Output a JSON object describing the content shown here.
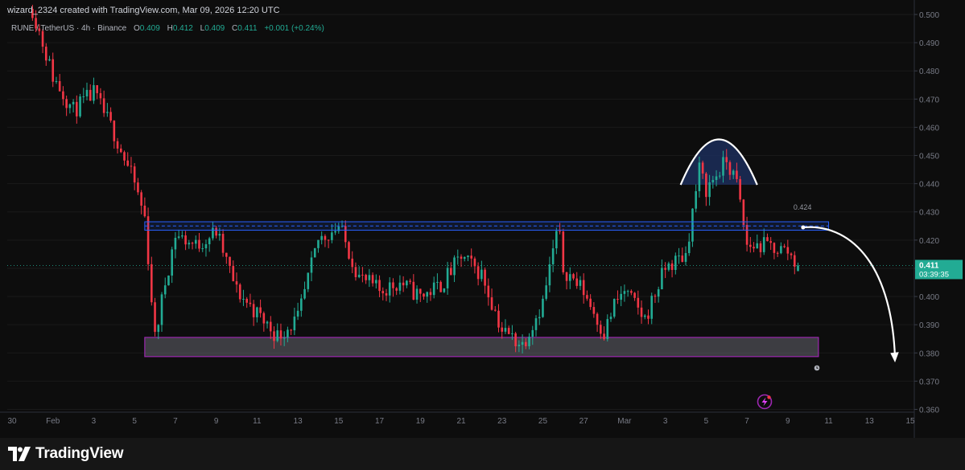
{
  "header": {
    "attribution": "wizard_2324 created with TradingView.com, Mar 09, 2026 12:20 UTC"
  },
  "legend": {
    "symbol": "RUNE / TetherUS · 4h · Binance",
    "open_label": "O",
    "open": "0.409",
    "high_label": "H",
    "high": "0.412",
    "low_label": "L",
    "low": "0.409",
    "close_label": "C",
    "close": "0.411",
    "change": "+0.001 (+0.24%)"
  },
  "last_price": {
    "value": "0.411",
    "countdown": "03:39:35"
  },
  "footer": {
    "brand": "TradingView"
  },
  "colors": {
    "up": "#22ab94",
    "down": "#f23645",
    "background": "#0d0d0d",
    "resistance": "#2962ff",
    "support_zone": "#9c27b0",
    "dome": "#1e2f5c",
    "price_label": "#22ab94"
  },
  "icons": [
    "tradingview-logo-icon",
    "lightning-icon",
    "clock-icon"
  ],
  "chart_data": {
    "type": "candlestick",
    "symbol": "RUNE / TetherUS",
    "interval": "4h",
    "exchange": "Binance",
    "y_ticks": [
      "0.500",
      "0.490",
      "0.480",
      "0.470",
      "0.460",
      "0.450",
      "0.440",
      "0.430",
      "0.420",
      "0.410",
      "0.400",
      "0.390",
      "0.380",
      "0.370",
      "0.360"
    ],
    "ylim": [
      0.359,
      0.5
    ],
    "x_ticks": [
      "30",
      "Feb",
      "3",
      "5",
      "7",
      "9",
      "11",
      "13",
      "15",
      "17",
      "19",
      "21",
      "23",
      "25",
      "27",
      "Mar",
      "3",
      "5",
      "7",
      "9",
      "11",
      "13",
      "15",
      "17"
    ],
    "x_range": [
      "2026-01-30",
      "2026-02-17"
    ],
    "anchors": [
      [
        "2026-01-31",
        0.502
      ],
      [
        "2026-02-01",
        0.478
      ],
      [
        "2026-02-02",
        0.466
      ],
      [
        "2026-02-03",
        0.472
      ],
      [
        "2026-02-04",
        0.458
      ],
      [
        "2026-02-05",
        0.44
      ],
      [
        "2026-02-05T12",
        0.428
      ],
      [
        "2026-02-06",
        0.385
      ],
      [
        "2026-02-06T12",
        0.405
      ],
      [
        "2026-02-07",
        0.422
      ],
      [
        "2026-02-08",
        0.418
      ],
      [
        "2026-02-09",
        0.423
      ],
      [
        "2026-02-10",
        0.402
      ],
      [
        "2026-02-11",
        0.394
      ],
      [
        "2026-02-12",
        0.386
      ],
      [
        "2026-02-13",
        0.392
      ],
      [
        "2026-02-14",
        0.42
      ],
      [
        "2026-02-15",
        0.425
      ],
      [
        "2026-02-16",
        0.407
      ],
      [
        "2026-02-17",
        0.402
      ],
      [
        "2026-02-18",
        0.405
      ],
      [
        "2026-02-19",
        0.4
      ],
      [
        "2026-02-20",
        0.404
      ],
      [
        "2026-02-21",
        0.414
      ],
      [
        "2026-02-22",
        0.408
      ],
      [
        "2026-02-23",
        0.388
      ],
      [
        "2026-02-24",
        0.383
      ],
      [
        "2026-02-25",
        0.398
      ],
      [
        "2026-02-25T18",
        0.425
      ],
      [
        "2026-02-26",
        0.41
      ],
      [
        "2026-02-27",
        0.402
      ],
      [
        "2026-02-28",
        0.387
      ],
      [
        "2026-02-28T12",
        0.397
      ],
      [
        "2026-03-01",
        0.402
      ],
      [
        "2026-03-02",
        0.392
      ],
      [
        "2026-03-03",
        0.41
      ],
      [
        "2026-03-04",
        0.415
      ],
      [
        "2026-03-04T16",
        0.445
      ],
      [
        "2026-03-05",
        0.438
      ],
      [
        "2026-03-06",
        0.448
      ],
      [
        "2026-03-06T12",
        0.44
      ],
      [
        "2026-03-07",
        0.418
      ],
      [
        "2026-03-08",
        0.418
      ],
      [
        "2026-03-09",
        0.416
      ],
      [
        "2026-03-09T12",
        0.411
      ]
    ],
    "drawings": {
      "resistance_band": {
        "from": "2026-02-05T12",
        "to": "2026-03-11",
        "y_top": 0.4265,
        "y_bottom": 0.4235,
        "dashed_mid": 0.425
      },
      "support_zone": {
        "from": "2026-02-05T12",
        "to": "2026-03-10T12",
        "y_top": 0.3855,
        "y_bottom": 0.3787
      },
      "dome": {
        "from": "2026-03-03T18",
        "to": "2026-03-07T12",
        "peak": 0.4557,
        "base": 0.4396
      },
      "projection_arrow": {
        "from": [
          "2026-03-09T18",
          0.4245
        ],
        "to": [
          "2026-03-14T06",
          0.377
        ]
      },
      "price_note": "0.424"
    }
  }
}
